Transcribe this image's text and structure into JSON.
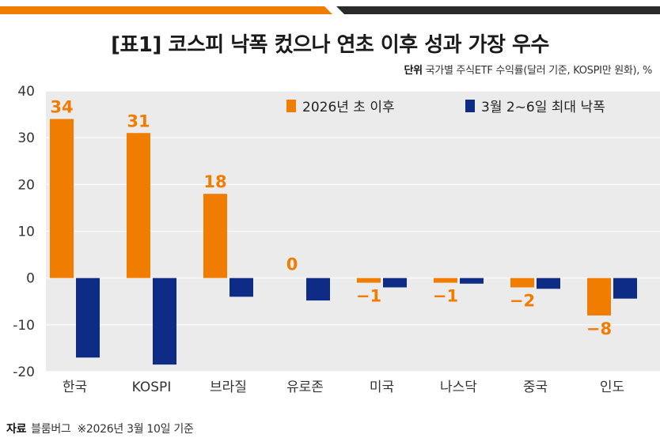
{
  "title": "[표1] 코스피 낙폭 컸으나 연초 이후 성과 가장 우수",
  "unit": {
    "label": "단위",
    "text": "국가별 주식ETF 수익률(달러 기준, KOSPI만 원화), %"
  },
  "source": {
    "label": "자료",
    "text": "블룸버그",
    "note": "※2026년 3월 10일 기준"
  },
  "colors": {
    "orange": "#F07D00",
    "navy": "#0E2C85",
    "plot_bg": "#EBEBEB",
    "grid": "#FFFFFF",
    "topbar_orange": "#F07D00",
    "topbar_dark": "#2A2A2A"
  },
  "chart_data": {
    "type": "bar",
    "categories": [
      "한국",
      "KOSPI",
      "브라질",
      "유로존",
      "미국",
      "나스닥",
      "중국",
      "인도"
    ],
    "series": [
      {
        "name": "2026년 초 이후",
        "color": "#F07D00",
        "values": [
          34,
          31,
          18,
          0,
          -1,
          -1,
          -2,
          -8
        ],
        "labels": [
          "34",
          "31",
          "18",
          "0",
          "−1",
          "−1",
          "−2",
          "−8"
        ]
      },
      {
        "name": "3월 2~6일 최대 낙폭",
        "color": "#0E2C85",
        "values": [
          -17,
          -18.5,
          -4,
          -4.8,
          -2,
          -1.2,
          -2.3,
          -4.4
        ]
      }
    ],
    "ylim": [
      -20,
      40
    ],
    "yticks": [
      40,
      30,
      20,
      10,
      0,
      -10,
      -20
    ],
    "ytick_labels": [
      "40",
      "30",
      "20",
      "10",
      "0",
      "-10",
      "-20"
    ],
    "grid": true,
    "legend_position": "top-right"
  }
}
